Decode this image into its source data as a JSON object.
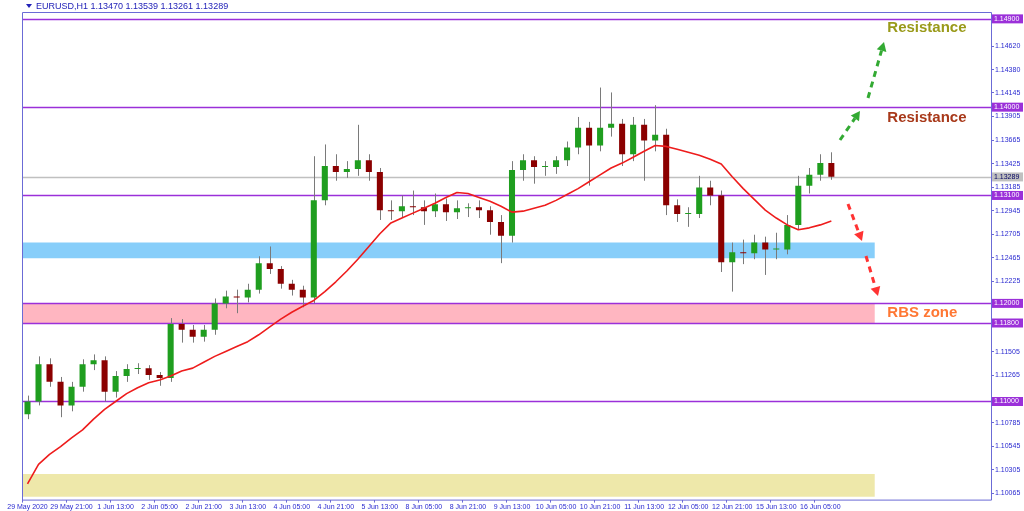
{
  "chart_data": {
    "type": "candlestick",
    "title": "EURUSD,H1 1.13470 1.13539 1.13261 1.13289",
    "categories": [
      "29 May 2020",
      null,
      null,
      null,
      "29 May 21:00",
      null,
      null,
      null,
      "1 Jun 13:00",
      null,
      null,
      null,
      "2 Jun 05:00",
      null,
      null,
      null,
      "2 Jun 21:00",
      null,
      null,
      null,
      "3 Jun 13:00",
      null,
      null,
      null,
      "4 Jun 05:00",
      null,
      null,
      null,
      "4 Jun 21:00",
      null,
      null,
      null,
      "5 Jun 13:00",
      null,
      null,
      null,
      "8 Jun 05:00",
      null,
      null,
      null,
      "8 Jun 21:00",
      null,
      null,
      null,
      "9 Jun 13:00",
      null,
      null,
      null,
      "10 Jun 05:00",
      null,
      null,
      null,
      "10 Jun 21:00",
      null,
      null,
      null,
      "11 Jun 13:00",
      null,
      null,
      null,
      "12 Jun 05:00",
      null,
      null,
      null,
      "12 Jun 21:00",
      null,
      null,
      null,
      "15 Jun 13:00",
      null,
      null,
      null,
      "16 Jun 05:00",
      null,
      null,
      null,
      null,
      null,
      null,
      null,
      null,
      null,
      null,
      null,
      null,
      null,
      null,
      null
    ],
    "ohlc": [
      [
        1.1087,
        1.1106,
        1.1082,
        1.11
      ],
      [
        1.11,
        1.1146,
        1.1096,
        1.1138
      ],
      [
        1.1138,
        1.1144,
        1.1115,
        1.112
      ],
      [
        1.112,
        1.1125,
        1.1084,
        1.1096
      ],
      [
        1.1096,
        1.112,
        1.109,
        1.1115
      ],
      [
        1.1115,
        1.1143,
        1.111,
        1.1138
      ],
      [
        1.1138,
        1.1148,
        1.1132,
        1.1142
      ],
      [
        1.1142,
        1.1146,
        1.11,
        1.111
      ],
      [
        1.111,
        1.1131,
        1.1104,
        1.1126
      ],
      [
        1.1126,
        1.1138,
        1.112,
        1.1133
      ],
      [
        1.1133,
        1.1139,
        1.1128,
        1.1134
      ],
      [
        1.1134,
        1.1137,
        1.1122,
        1.1127
      ],
      [
        1.1127,
        1.113,
        1.1116,
        1.1124
      ],
      [
        1.1124,
        1.1185,
        1.112,
        1.1179
      ],
      [
        1.1179,
        1.1184,
        1.116,
        1.1173
      ],
      [
        1.1173,
        1.1178,
        1.116,
        1.1166
      ],
      [
        1.1166,
        1.1178,
        1.1161,
        1.1173
      ],
      [
        1.1173,
        1.1205,
        1.1168,
        1.12
      ],
      [
        1.12,
        1.1213,
        1.1195,
        1.1207
      ],
      [
        1.1207,
        1.1214,
        1.119,
        1.1206
      ],
      [
        1.1206,
        1.122,
        1.1201,
        1.1214
      ],
      [
        1.1214,
        1.1248,
        1.121,
        1.1241
      ],
      [
        1.1241,
        1.1258,
        1.123,
        1.1235
      ],
      [
        1.1235,
        1.1238,
        1.1215,
        1.122
      ],
      [
        1.122,
        1.1224,
        1.1208,
        1.1214
      ],
      [
        1.1214,
        1.1218,
        1.1196,
        1.1206
      ],
      [
        1.1206,
        1.135,
        1.12,
        1.1305
      ],
      [
        1.1305,
        1.1362,
        1.13,
        1.134
      ],
      [
        1.134,
        1.1352,
        1.1325,
        1.1334
      ],
      [
        1.1334,
        1.1345,
        1.1328,
        1.1337
      ],
      [
        1.1337,
        1.1382,
        1.133,
        1.1346
      ],
      [
        1.1346,
        1.1352,
        1.1325,
        1.1334
      ],
      [
        1.1334,
        1.1338,
        1.1285,
        1.1295
      ],
      [
        1.1295,
        1.1305,
        1.1285,
        1.1294
      ],
      [
        1.1294,
        1.131,
        1.1288,
        1.1299
      ],
      [
        1.1299,
        1.1315,
        1.129,
        1.1298
      ],
      [
        1.1298,
        1.1305,
        1.128,
        1.1294
      ],
      [
        1.1294,
        1.1312,
        1.1288,
        1.1301
      ],
      [
        1.1301,
        1.1307,
        1.1284,
        1.1293
      ],
      [
        1.1293,
        1.1305,
        1.1286,
        1.1297
      ],
      [
        1.1297,
        1.1302,
        1.1288,
        1.1298
      ],
      [
        1.1298,
        1.1305,
        1.1287,
        1.1295
      ],
      [
        1.1295,
        1.1299,
        1.127,
        1.1283
      ],
      [
        1.1283,
        1.129,
        1.1241,
        1.1269
      ],
      [
        1.1269,
        1.1345,
        1.1262,
        1.1336
      ],
      [
        1.1336,
        1.1352,
        1.1325,
        1.1346
      ],
      [
        1.1346,
        1.135,
        1.1322,
        1.1339
      ],
      [
        1.1339,
        1.1345,
        1.133,
        1.1339
      ],
      [
        1.1339,
        1.135,
        1.1332,
        1.1346
      ],
      [
        1.1346,
        1.1365,
        1.134,
        1.1359
      ],
      [
        1.1359,
        1.139,
        1.1352,
        1.1379
      ],
      [
        1.1379,
        1.1385,
        1.132,
        1.1361
      ],
      [
        1.1361,
        1.142,
        1.1355,
        1.1379
      ],
      [
        1.1379,
        1.1415,
        1.137,
        1.1383
      ],
      [
        1.1383,
        1.1388,
        1.134,
        1.1352
      ],
      [
        1.1352,
        1.139,
        1.1345,
        1.1382
      ],
      [
        1.1382,
        1.1388,
        1.1325,
        1.1366
      ],
      [
        1.1366,
        1.1402,
        1.1355,
        1.1372
      ],
      [
        1.1372,
        1.1378,
        1.129,
        1.13
      ],
      [
        1.13,
        1.1306,
        1.1283,
        1.1291
      ],
      [
        1.1291,
        1.1298,
        1.1278,
        1.1291
      ],
      [
        1.1291,
        1.133,
        1.1287,
        1.1318
      ],
      [
        1.1318,
        1.1325,
        1.13,
        1.131
      ],
      [
        1.131,
        1.1315,
        1.1232,
        1.1242
      ],
      [
        1.1242,
        1.1262,
        1.1212,
        1.1252
      ],
      [
        1.1252,
        1.1265,
        1.124,
        1.1251
      ],
      [
        1.1251,
        1.127,
        1.1245,
        1.1262
      ],
      [
        1.1262,
        1.1268,
        1.1229,
        1.1255
      ],
      [
        1.1255,
        1.1272,
        1.1245,
        1.1255
      ],
      [
        1.1255,
        1.129,
        1.125,
        1.128
      ],
      [
        1.128,
        1.133,
        1.1275,
        1.132
      ],
      [
        1.132,
        1.1338,
        1.1312,
        1.1331
      ],
      [
        1.1331,
        1.1352,
        1.1325,
        1.1343
      ],
      [
        1.1343,
        1.1354,
        1.1326,
        1.1329
      ],
      null,
      null,
      null,
      null,
      null,
      null,
      null,
      null,
      null,
      null,
      null,
      null,
      null,
      null
    ],
    "series": [
      {
        "type": "line",
        "color": "#ee1c1c",
        "values": [
          1.1016,
          1.1036,
          1.1046,
          1.1054,
          1.1063,
          1.1071,
          1.1082,
          1.1092,
          1.11,
          1.1108,
          1.1114,
          1.1119,
          1.1122,
          1.1126,
          1.1131,
          1.1134,
          1.114,
          1.1146,
          1.1151,
          1.1156,
          1.1161,
          1.1168,
          1.1176,
          1.1184,
          1.1191,
          1.1197,
          1.1203,
          1.1212,
          1.1222,
          1.1233,
          1.1245,
          1.1258,
          1.1271,
          1.1282,
          1.1287,
          1.1292,
          1.1297,
          1.1302,
          1.1308,
          1.1313,
          1.1312,
          1.1308,
          1.1304,
          1.1299,
          1.1293,
          1.1294,
          1.1297,
          1.13,
          1.1305,
          1.1311,
          1.1317,
          1.1324,
          1.1331,
          1.1338,
          1.1343,
          1.1349,
          1.1355,
          1.1361,
          1.136,
          1.1357,
          1.1354,
          1.1351,
          1.1347,
          1.1342,
          1.1329,
          1.1317,
          1.1306,
          1.1295,
          1.1287,
          1.128,
          1.1275,
          1.1277,
          1.128,
          1.1284,
          null,
          null,
          null,
          null,
          null,
          null,
          null,
          null,
          null,
          null,
          null,
          null,
          null,
          null
        ]
      }
    ],
    "ylim": [
      1.1,
      1.1497
    ],
    "yticks": [
      {
        "value": 1.1462,
        "label": "1.14620"
      },
      {
        "value": 1.1438,
        "label": "1.14380"
      },
      {
        "value": 1.14145,
        "label": "1.14145"
      },
      {
        "value": 1.13905,
        "label": "1.13905"
      },
      {
        "value": 1.13665,
        "label": "1.13665"
      },
      {
        "value": 1.13425,
        "label": "1.13425"
      },
      {
        "value": 1.13185,
        "label": "1.13185"
      },
      {
        "value": 1.12945,
        "label": "1.12945"
      },
      {
        "value": 1.12705,
        "label": "1.12705"
      },
      {
        "value": 1.12465,
        "label": "1.12465"
      },
      {
        "value": 1.12225,
        "label": "1.12225"
      },
      {
        "value": 1.11505,
        "label": "1.11505"
      },
      {
        "value": 1.11265,
        "label": "1.11265"
      },
      {
        "value": 1.10785,
        "label": "1.10785"
      },
      {
        "value": 1.10545,
        "label": "1.10545"
      },
      {
        "value": 1.10305,
        "label": "1.10305"
      },
      {
        "value": 1.10065,
        "label": "1.10065"
      }
    ],
    "ref_lines": [
      {
        "axis": "y",
        "value": 1.149,
        "label": "1.14900",
        "color": "#9b30d9"
      },
      {
        "axis": "y",
        "value": 1.14,
        "label": "1.14000",
        "color": "#9b30d9"
      },
      {
        "axis": "y",
        "value": 1.13289,
        "label": "1.13289",
        "color": "#c0c0c0"
      },
      {
        "axis": "y",
        "value": 1.131,
        "label": "1.13100",
        "color": "#9b30d9"
      },
      {
        "axis": "y",
        "value": 1.12,
        "label": "1.12000",
        "color": "#9b30d9"
      },
      {
        "axis": "y",
        "value": 1.118,
        "label": "1.11800",
        "color": "#9b30d9"
      },
      {
        "axis": "y",
        "value": 1.11,
        "label": "1.11000",
        "color": "#9b30d9"
      }
    ],
    "bands": [
      {
        "axis": "y",
        "from": 1.118,
        "to": 1.12,
        "label": "RBS zone",
        "color": "#ffb6c1"
      },
      {
        "axis": "y",
        "from": 1.1246,
        "to": 1.1262,
        "color": "#87cefa"
      },
      {
        "axis": "y",
        "from": 1.1003,
        "to": 1.1026,
        "color": "#eee8aa"
      }
    ],
    "annotations": [
      "Resistance",
      "Resistance"
    ]
  }
}
